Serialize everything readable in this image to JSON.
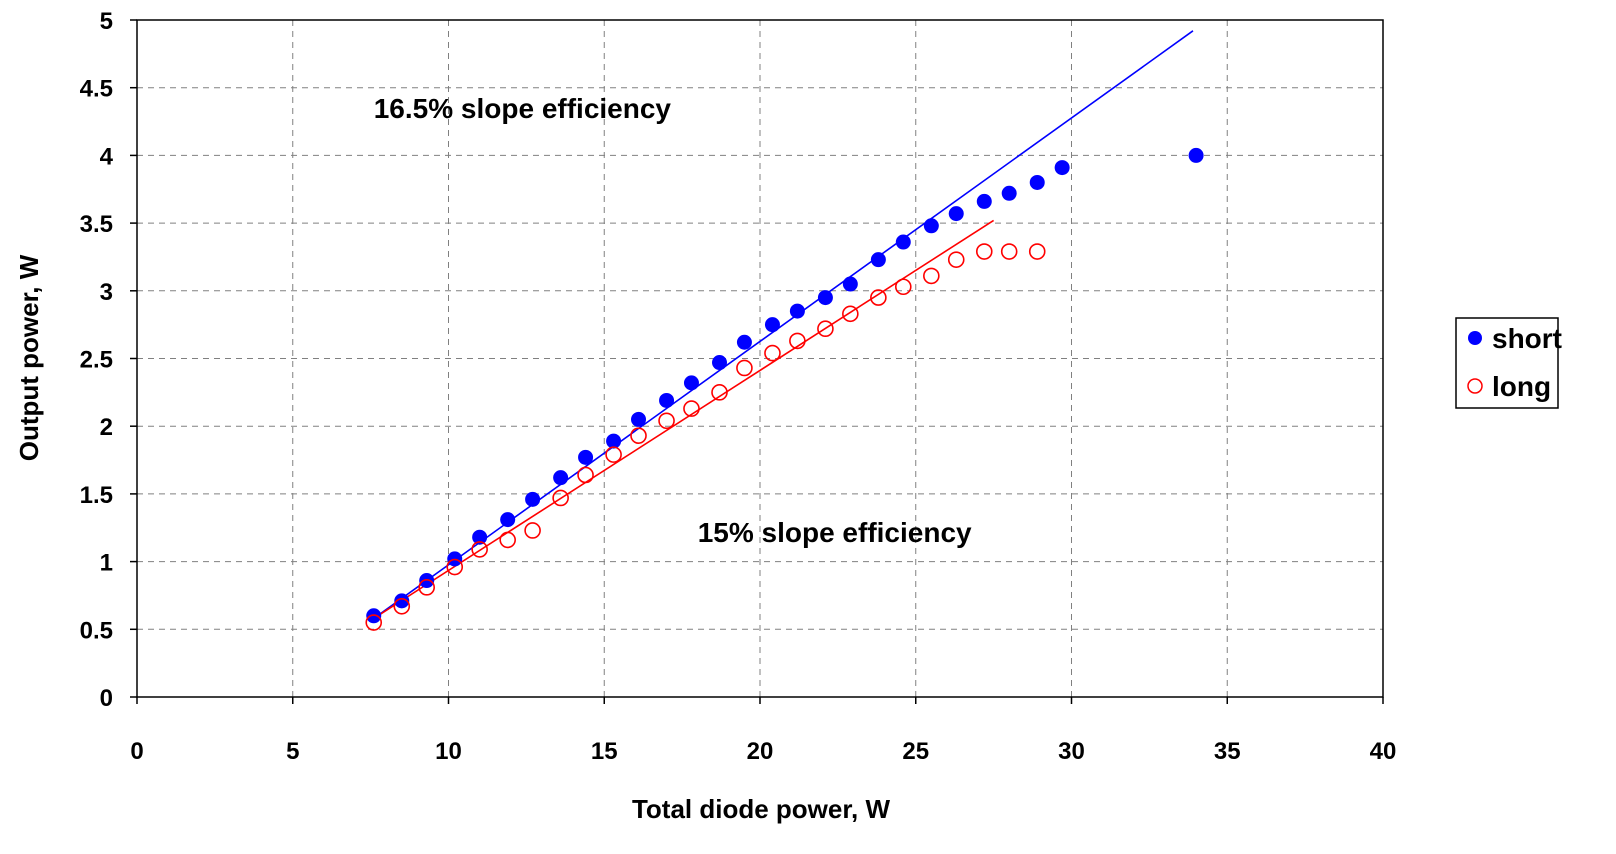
{
  "chart_data": {
    "type": "scatter",
    "title": "",
    "xlabel": "Total diode power, W",
    "ylabel": "Output power, W",
    "xlim": [
      0,
      40
    ],
    "ylim": [
      0,
      5
    ],
    "x_ticks": [
      "0",
      "5",
      "10",
      "15",
      "20",
      "25",
      "30",
      "35",
      "40"
    ],
    "y_ticks": [
      "0",
      "0.5",
      "1",
      "1.5",
      "2",
      "2.5",
      "3",
      "3.5",
      "4",
      "4.5",
      "5"
    ],
    "grid": true,
    "legend_position": "right",
    "series": [
      {
        "name": "short",
        "marker": "filled-circle",
        "color": "#0000ff",
        "x": [
          7.6,
          8.5,
          9.3,
          10.2,
          11.0,
          11.9,
          12.7,
          13.6,
          14.4,
          15.3,
          16.1,
          17.0,
          17.8,
          18.7,
          19.5,
          20.4,
          21.2,
          22.1,
          22.9,
          23.8,
          24.6,
          25.5,
          26.3,
          27.2,
          28.0,
          28.9,
          29.7,
          34.0
        ],
        "y": [
          0.6,
          0.71,
          0.86,
          1.02,
          1.18,
          1.31,
          1.46,
          1.62,
          1.77,
          1.89,
          2.05,
          2.19,
          2.32,
          2.47,
          2.62,
          2.75,
          2.85,
          2.95,
          3.05,
          3.23,
          3.36,
          3.48,
          3.57,
          3.66,
          3.72,
          3.8,
          3.91,
          4.0
        ]
      },
      {
        "name": "long",
        "marker": "open-circle",
        "color": "#ff0000",
        "x": [
          7.6,
          8.5,
          9.3,
          10.2,
          11.0,
          11.9,
          12.7,
          13.6,
          14.4,
          15.3,
          16.1,
          17.0,
          17.8,
          18.7,
          19.5,
          20.4,
          21.2,
          22.1,
          22.9,
          23.8,
          24.6,
          25.5,
          26.3,
          27.2,
          28.0,
          28.9
        ],
        "y": [
          0.55,
          0.67,
          0.81,
          0.96,
          1.09,
          1.16,
          1.23,
          1.47,
          1.64,
          1.79,
          1.93,
          2.04,
          2.13,
          2.25,
          2.43,
          2.54,
          2.63,
          2.72,
          2.83,
          2.95,
          3.03,
          3.11,
          3.23,
          3.29,
          3.29,
          3.29
        ]
      }
    ],
    "trendlines": [
      {
        "color": "#0000ff",
        "x": [
          7.6,
          33.9
        ],
        "y": [
          0.58,
          4.92
        ]
      },
      {
        "color": "#ff0000",
        "x": [
          7.6,
          27.5
        ],
        "y": [
          0.58,
          3.52
        ]
      }
    ],
    "annotations": [
      {
        "text": "16.5% slope efficiency",
        "x": 7.6,
        "y": 4.35
      },
      {
        "text": "15% slope efficiency",
        "x": 18.0,
        "y": 1.22
      }
    ]
  }
}
